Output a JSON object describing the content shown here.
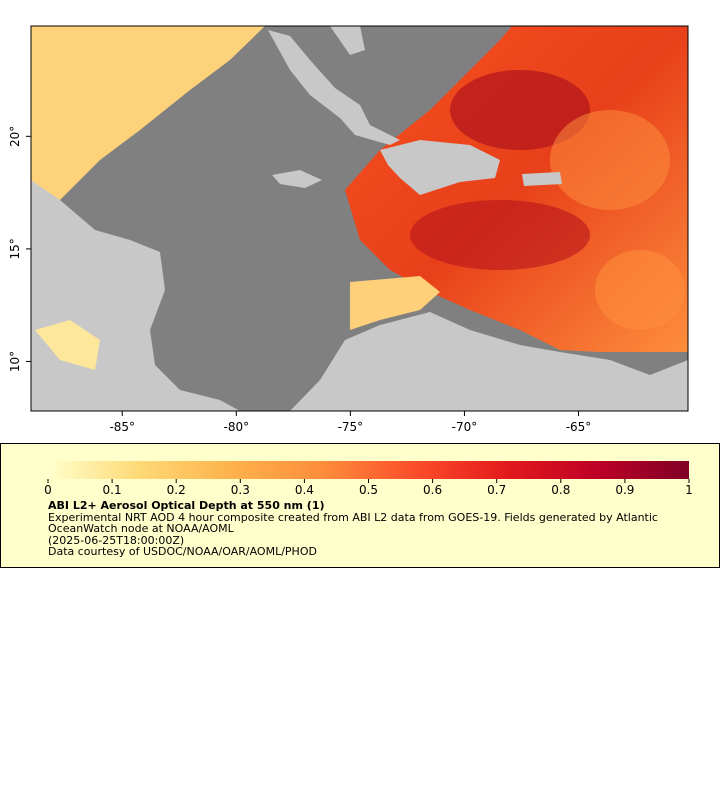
{
  "map": {
    "lon_range": [
      -89,
      -60.2
    ],
    "lat_range": [
      7.8,
      24.9
    ],
    "lon_ticks": [
      {
        "value": -85,
        "label": "-85°"
      },
      {
        "value": -80,
        "label": "-80°"
      },
      {
        "value": -75,
        "label": "-75°"
      },
      {
        "value": -70,
        "label": "-70°"
      },
      {
        "value": -65,
        "label": "-65°"
      }
    ],
    "lat_ticks": [
      {
        "value": 20,
        "label": "20°"
      },
      {
        "value": 15,
        "label": "15°"
      },
      {
        "value": 10,
        "label": "10°"
      }
    ]
  },
  "legend": {
    "range": [
      0,
      1
    ],
    "ticks": [
      0,
      0.1,
      0.2,
      0.3,
      0.4,
      0.5,
      0.6,
      0.7,
      0.8,
      0.9,
      1
    ],
    "colormap": [
      "#ffffcc",
      "#fed976",
      "#feb24c",
      "#fd8d3c",
      "#fc4e2a",
      "#e31a1c",
      "#bd0026",
      "#800026"
    ],
    "title": "ABI L2+ Aerosol Optical Depth at 550 nm (1)",
    "description": "Experimental NRT AOD 4 hour composite created from ABI L2 data from GOES-19. Fields generated by Atlantic OceanWatch node at NOAA/AOML",
    "timestamp": "(2025-06-25T18:00:00Z)",
    "credit": "Data courtesy of USDOC/NOAA/OAR/AOML/PHOD"
  }
}
